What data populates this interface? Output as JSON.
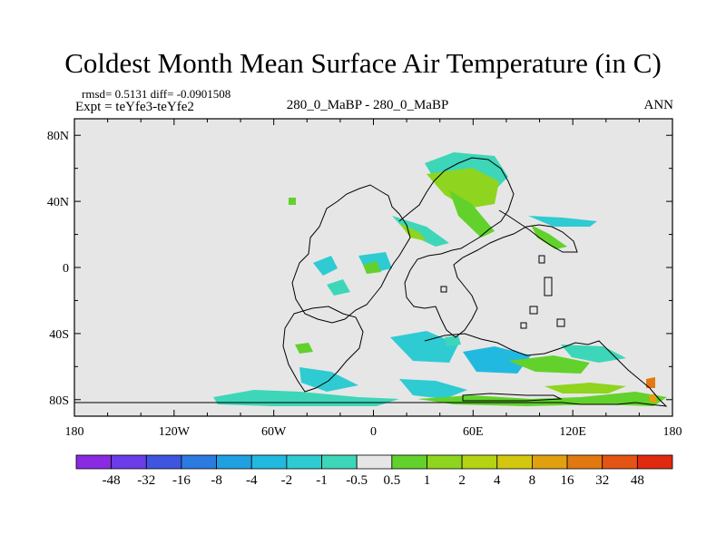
{
  "title": "Coldest Month Mean Surface Air Temperature (in C)",
  "stats": "rmsd= 0.5131 diff= -0.0901508",
  "expt": "Expt = teYfe3-teYfe2",
  "center_label": "280_0_MaBP - 280_0_MaBP",
  "season": "ANN",
  "map": {
    "lon_range": [
      -180,
      180
    ],
    "lat_range": [
      -90,
      90
    ],
    "background_color": "#e6e6e6",
    "x_ticks": [
      {
        "lon": -180,
        "label": "180"
      },
      {
        "lon": -120,
        "label": "120W"
      },
      {
        "lon": -60,
        "label": "60W"
      },
      {
        "lon": 0,
        "label": "0"
      },
      {
        "lon": 60,
        "label": "60E"
      },
      {
        "lon": 120,
        "label": "120E"
      },
      {
        "lon": 180,
        "label": "180"
      }
    ],
    "y_ticks": [
      {
        "lat": 80,
        "label": "80N"
      },
      {
        "lat": 40,
        "label": "40N"
      },
      {
        "lat": 0,
        "label": "0"
      },
      {
        "lat": -40,
        "label": "40S"
      },
      {
        "lat": -80,
        "label": "80S"
      }
    ]
  },
  "colorbar": {
    "colors": [
      "#8a2be2",
      "#6a3de8",
      "#3f55e0",
      "#2b7be0",
      "#1fa0e0",
      "#22b9e0",
      "#2ecbd2",
      "#3dd6b8",
      "#e6e6e6",
      "#62d12c",
      "#8fd41f",
      "#b5d312",
      "#d3c80f",
      "#e0a010",
      "#e27812",
      "#e45414",
      "#e02a10"
    ],
    "labels": [
      "-48",
      "-32",
      "-16",
      "-8",
      "-4",
      "-2",
      "-1",
      "-0.5",
      "0.5",
      "1",
      "2",
      "4",
      "8",
      "16",
      "32",
      "48"
    ]
  }
}
